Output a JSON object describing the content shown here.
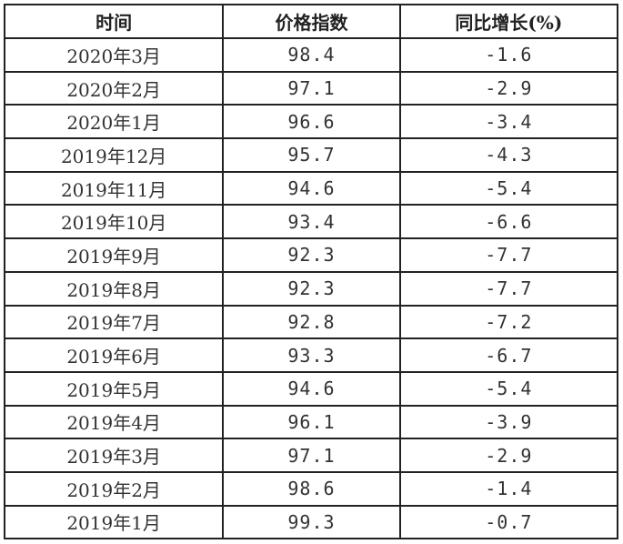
{
  "table": {
    "headers": [
      "时间",
      "价格指数",
      "同比增长(%)"
    ],
    "rows": [
      [
        "2020年3月",
        "98.4",
        "-1.6"
      ],
      [
        "2020年2月",
        "97.1",
        "-2.9"
      ],
      [
        "2020年1月",
        "96.6",
        "-3.4"
      ],
      [
        "2019年12月",
        "95.7",
        "-4.3"
      ],
      [
        "2019年11月",
        "94.6",
        "-5.4"
      ],
      [
        "2019年10月",
        "93.4",
        "-6.6"
      ],
      [
        "2019年9月",
        "92.3",
        "-7.7"
      ],
      [
        "2019年8月",
        "92.3",
        "-7.7"
      ],
      [
        "2019年7月",
        "92.8",
        "-7.2"
      ],
      [
        "2019年6月",
        "93.3",
        "-6.7"
      ],
      [
        "2019年5月",
        "94.6",
        "-5.4"
      ],
      [
        "2019年4月",
        "96.1",
        "-3.9"
      ],
      [
        "2019年3月",
        "97.1",
        "-2.9"
      ],
      [
        "2019年2月",
        "98.6",
        "-1.4"
      ],
      [
        "2019年1月",
        "99.3",
        "-0.7"
      ]
    ]
  }
}
